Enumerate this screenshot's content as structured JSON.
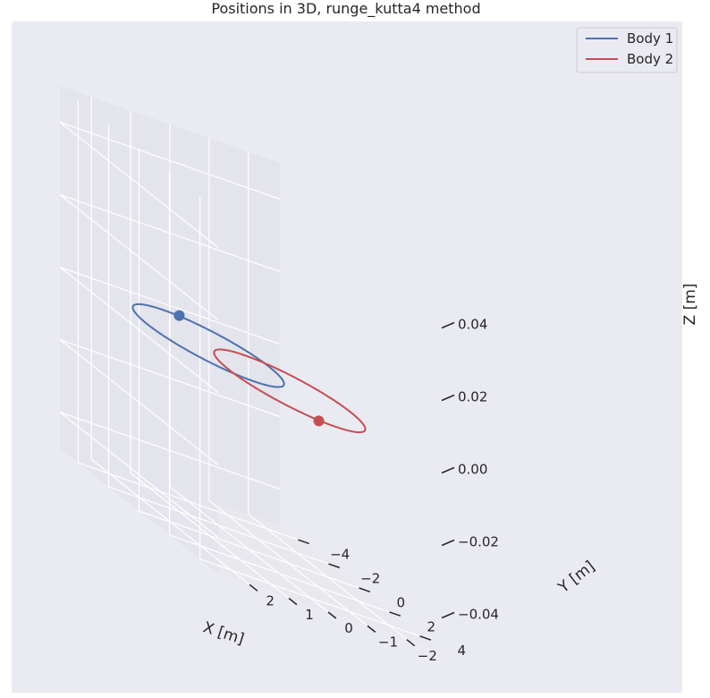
{
  "chart_data": {
    "type": "line",
    "projection": "3d",
    "title": "Positions in 3D, runge_kutta4 method",
    "xlabel": "X [m]",
    "ylabel": "Y [m]",
    "zlabel": "Z [m]",
    "xlim": [
      -5.2,
      5.2
    ],
    "ylim": [
      -2.8,
      2.8
    ],
    "zlim": [
      -0.05,
      0.05
    ],
    "xticks": [
      -4,
      -2,
      0,
      2,
      4
    ],
    "yticks": [
      -2,
      -1,
      0,
      1,
      2
    ],
    "zticks": [
      -0.04,
      -0.02,
      0.0,
      0.02,
      0.04
    ],
    "ztick_labels": [
      "−0.04",
      "−0.02",
      "0.00",
      "0.02",
      "0.04"
    ],
    "xtick_labels": [
      "−4",
      "−2",
      "0",
      "2",
      "4"
    ],
    "ytick_labels": [
      "−2",
      "−1",
      "0",
      "1",
      "2"
    ],
    "grid": true,
    "legend_position": "top-right",
    "series": [
      {
        "name": "Body 1",
        "color": "#4c72b0",
        "orbit": {
          "center": [
            -1.25,
            0.55,
            0
          ],
          "semi_x": 2.95,
          "semi_y": 1.55
        },
        "marker": [
          -4.2,
          0.15,
          0
        ]
      },
      {
        "name": "Body 2",
        "color": "#c44e52",
        "orbit": {
          "center": [
            1.25,
            -0.55,
            0
          ],
          "semi_x": 2.95,
          "semi_y": 1.55
        },
        "marker": [
          4.2,
          -0.15,
          0
        ]
      }
    ]
  }
}
